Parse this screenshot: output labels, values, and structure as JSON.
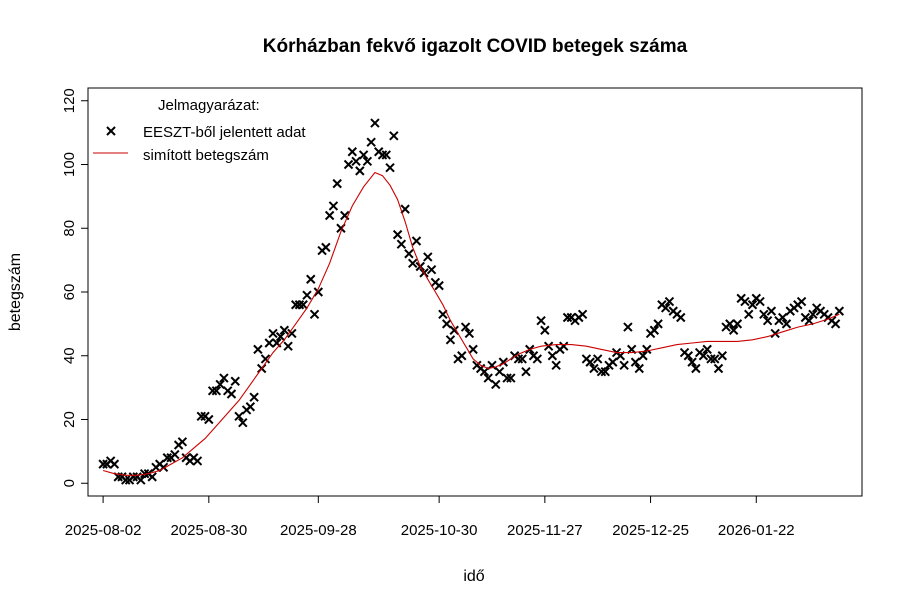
{
  "chart_data": {
    "type": "scatter",
    "title": "Kórházban fekvő igazolt COVID betegek száma",
    "xlabel": "idő",
    "ylabel": "betegszám",
    "xlim_days": [
      -4,
      201
    ],
    "ylim": [
      -4,
      124
    ],
    "y_ticks": [
      0,
      20,
      40,
      60,
      80,
      100,
      120
    ],
    "x_ticks": [
      {
        "day": 0,
        "label": "2025-08-02"
      },
      {
        "day": 28,
        "label": "2025-08-30"
      },
      {
        "day": 57,
        "label": "2025-09-28"
      },
      {
        "day": 89,
        "label": "2025-10-30"
      },
      {
        "day": 117,
        "label": "2025-11-27"
      },
      {
        "day": 145,
        "label": "2025-12-25"
      },
      {
        "day": 173,
        "label": "2026-01-22"
      }
    ],
    "legend": {
      "title": "Jelmagyarázat:",
      "position": "top-left",
      "entries": [
        "EESZT-ből jelentett adat",
        "simított betegszám"
      ]
    },
    "series": [
      {
        "name": "EESZT-ből jelentett adat",
        "kind": "points",
        "day0": "2025-08-02",
        "x": [
          0,
          1,
          2,
          3,
          4,
          5,
          6,
          7,
          8,
          9,
          10,
          11,
          12,
          13,
          14,
          15,
          16,
          17,
          18,
          19,
          20,
          21,
          22,
          23,
          24,
          25,
          26,
          27,
          28,
          29,
          30,
          31,
          32,
          33,
          34,
          35,
          36,
          37,
          38,
          39,
          40,
          41,
          42,
          43,
          44,
          45,
          46,
          47,
          48,
          49,
          50,
          51,
          52,
          53,
          54,
          55,
          56,
          57,
          58,
          59,
          60,
          61,
          62,
          63,
          64,
          65,
          66,
          67,
          68,
          69,
          70,
          71,
          72,
          73,
          74,
          75,
          76,
          77,
          78,
          79,
          80,
          81,
          82,
          83,
          84,
          85,
          86,
          87,
          88,
          89,
          90,
          91,
          92,
          93,
          94,
          95,
          96,
          97,
          98,
          99,
          100,
          101,
          102,
          103,
          104,
          105,
          106,
          107,
          108,
          109,
          110,
          111,
          112,
          113,
          114,
          115,
          116,
          117,
          118,
          119,
          120,
          121,
          122,
          123,
          124,
          125,
          126,
          127,
          128,
          129,
          130,
          131,
          132,
          133,
          134,
          135,
          136,
          137,
          138,
          139,
          140,
          141,
          142,
          143,
          144,
          145,
          146,
          147,
          148,
          149,
          150,
          151,
          152,
          153,
          154,
          155,
          156,
          157,
          158,
          159,
          160,
          161,
          162,
          163,
          164,
          165,
          166,
          167,
          168,
          169,
          170,
          171,
          172,
          173,
          174,
          175,
          176,
          177,
          178,
          179,
          180,
          181,
          182,
          183,
          184,
          185,
          186,
          187,
          188,
          189,
          190,
          191,
          192,
          193,
          194,
          195
        ],
        "y": [
          6,
          6,
          7,
          6,
          2,
          2,
          1,
          1,
          2,
          2,
          1,
          3,
          3,
          2,
          5,
          6,
          5,
          8,
          8,
          9,
          12,
          13,
          8,
          7,
          8,
          7,
          21,
          21,
          20,
          29,
          29,
          31,
          33,
          29,
          28,
          32,
          21,
          19,
          23,
          24,
          27,
          42,
          36,
          39,
          44,
          47,
          44,
          46,
          48,
          43,
          47,
          56,
          56,
          56,
          59,
          64,
          53,
          60,
          73,
          74,
          84,
          87,
          94,
          80,
          84,
          100,
          104,
          101,
          98,
          103,
          101,
          107,
          113,
          104,
          103,
          103,
          99,
          109,
          78,
          75,
          86,
          72,
          69,
          76,
          68,
          66,
          71,
          67,
          63,
          62,
          53,
          50,
          45,
          48,
          39,
          40,
          49,
          47,
          42,
          37,
          36,
          35,
          33,
          37,
          31,
          35,
          38,
          33,
          33,
          40,
          39,
          39,
          35,
          42,
          40,
          39,
          51,
          48,
          43,
          40,
          37,
          42,
          43,
          52,
          52,
          51,
          52,
          53,
          39,
          38,
          36,
          39,
          35,
          35,
          37,
          38,
          41,
          40,
          37,
          49,
          42,
          38,
          36,
          40,
          42,
          47,
          48,
          50,
          56,
          55,
          57,
          54,
          53,
          52,
          41,
          40,
          38,
          36,
          41,
          40,
          42,
          39,
          39,
          36,
          40,
          49,
          50,
          48,
          50,
          58,
          57,
          53,
          56,
          58,
          57,
          53,
          51,
          54,
          47,
          51,
          52,
          50,
          54,
          55,
          56,
          57,
          52,
          51,
          53,
          55,
          54,
          53,
          52,
          51,
          50,
          54
        ]
      },
      {
        "name": "simított betegszám",
        "kind": "line",
        "color": "#cc0000",
        "x": [
          0,
          3,
          6,
          9,
          12,
          15,
          18,
          21,
          24,
          27,
          30,
          33,
          36,
          39,
          42,
          45,
          48,
          51,
          54,
          57,
          60,
          63,
          66,
          69,
          72,
          74,
          76,
          78,
          80,
          82,
          84,
          86,
          88,
          90,
          92,
          94,
          96,
          98,
          100,
          102,
          104,
          106,
          108,
          110,
          113,
          116,
          120,
          124,
          128,
          132,
          136,
          140,
          144,
          148,
          152,
          156,
          160,
          164,
          168,
          172,
          176,
          180,
          184,
          188,
          192,
          195
        ],
        "y": [
          4,
          3,
          2.5,
          2.5,
          3,
          4,
          6,
          8,
          11,
          14,
          18,
          22,
          26,
          31,
          36,
          41,
          45,
          50,
          55,
          61,
          69,
          79,
          87,
          93,
          97.5,
          96.5,
          93.5,
          89,
          82,
          74,
          68,
          64,
          60,
          56,
          51,
          47,
          43,
          39,
          37,
          36,
          36.5,
          37.5,
          39,
          40.5,
          42,
          43,
          43.5,
          43.5,
          43,
          42,
          41,
          41,
          41.5,
          42.5,
          43.5,
          44,
          44.5,
          44.5,
          44.5,
          45,
          46,
          47.5,
          49,
          50,
          51.5,
          53
        ]
      }
    ]
  }
}
